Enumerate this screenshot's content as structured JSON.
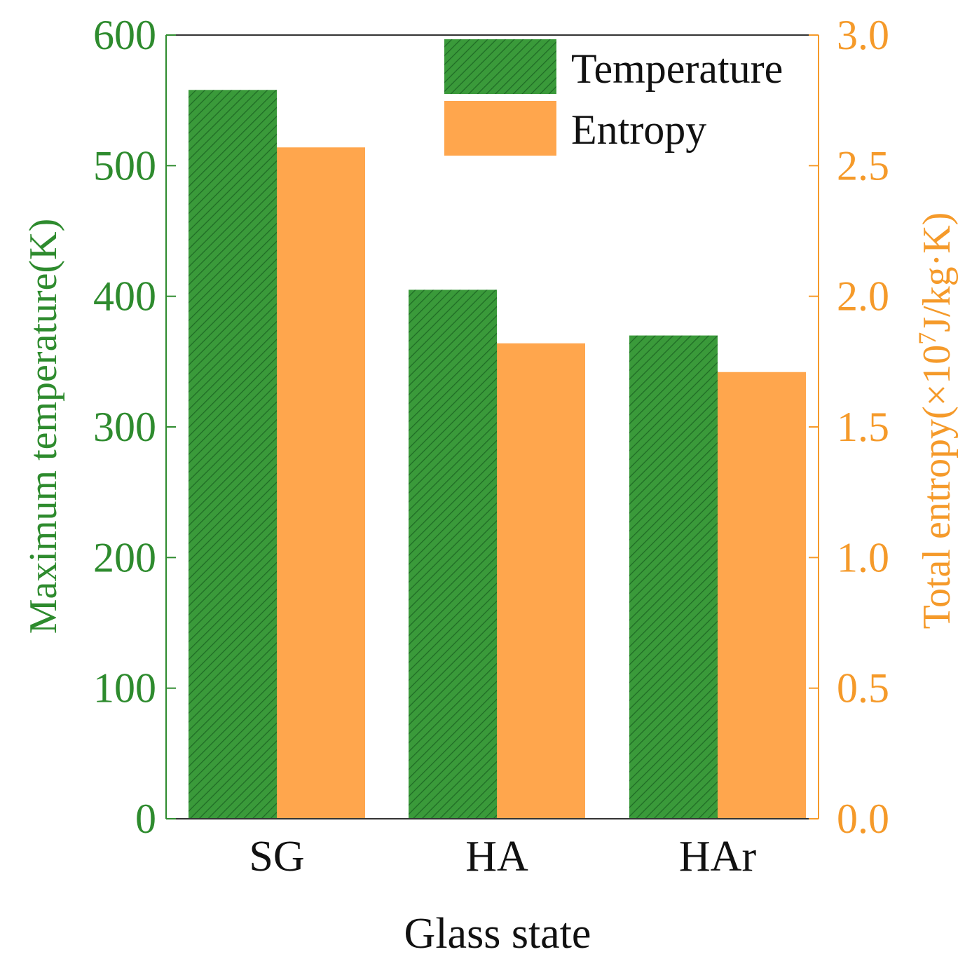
{
  "chart_data": {
    "type": "bar",
    "categories": [
      "SG",
      "HA",
      "HAr"
    ],
    "series": [
      {
        "name": "Temperature",
        "axis": "left",
        "values": [
          558,
          405,
          370
        ],
        "color": "#3a9a3a",
        "pattern": "diagonal-hatch"
      },
      {
        "name": "Entropy",
        "axis": "right",
        "values": [
          2.57,
          1.82,
          1.71
        ],
        "color": "#ffa64d",
        "pattern": "solid"
      }
    ],
    "xlabel": "Glass state",
    "ylabel_left": "Maximum temperature(K)",
    "ylabel_right_prefix": "Total entropy(×10",
    "ylabel_right_exponent": "7",
    "ylabel_right_suffix": "J/kg·K)",
    "ylim_left": [
      0,
      600
    ],
    "ylim_right": [
      0,
      3.0
    ],
    "yticks_left": [
      "0",
      "100",
      "200",
      "300",
      "400",
      "500",
      "600"
    ],
    "yticks_right": [
      "0.0",
      "0.5",
      "1.0",
      "1.5",
      "2.0",
      "2.5",
      "3.0"
    ],
    "legend_position": "top-right",
    "grid": false,
    "left_axis_color": "#2e8b2e",
    "right_axis_color": "#f59a2a"
  }
}
